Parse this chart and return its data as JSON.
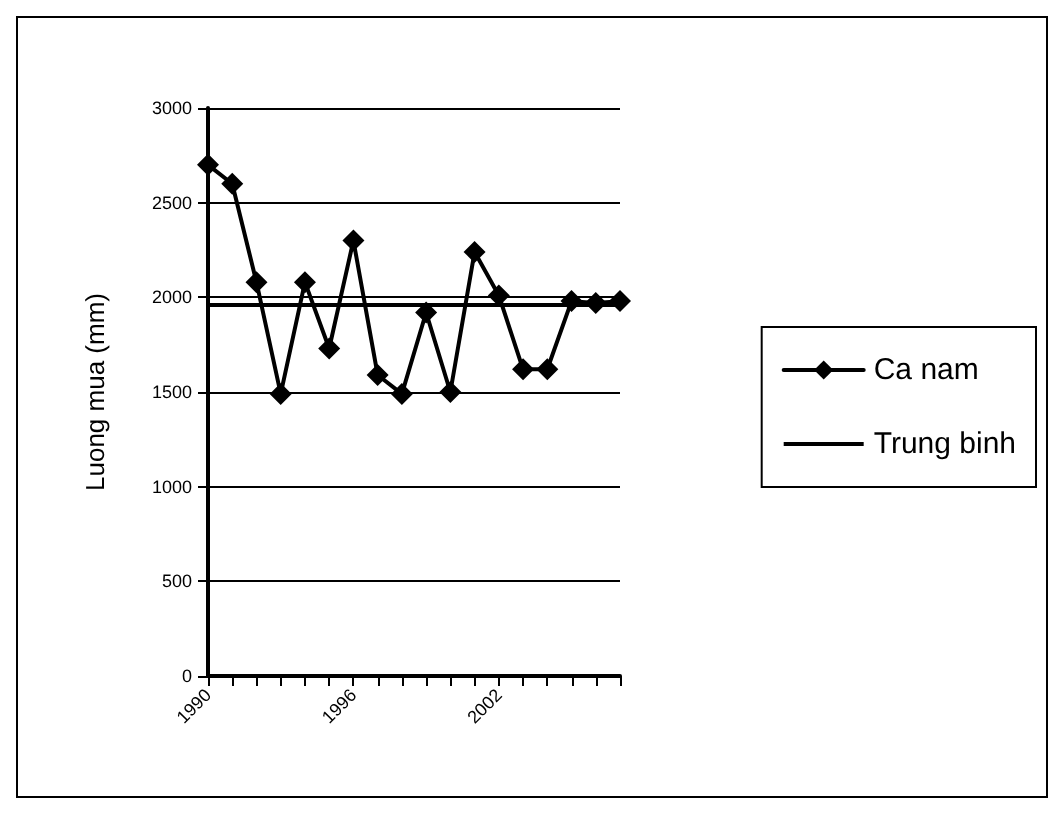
{
  "chart_data": {
    "type": "line",
    "ylabel": "Luong mua (mm)",
    "categories": [
      "1990",
      null,
      null,
      null,
      null,
      null,
      "1996",
      null,
      null,
      null,
      null,
      null,
      "2002",
      null,
      null,
      null,
      null,
      null
    ],
    "series": [
      {
        "name": "Ca nam",
        "color": "#000000",
        "marker": "diamond",
        "values": [
          2700,
          2600,
          2080,
          1490,
          2080,
          1730,
          2300,
          1590,
          1490,
          1920,
          1500,
          2240,
          2010,
          1620,
          1620,
          1980,
          1970,
          1980
        ]
      },
      {
        "name": "Trung binh",
        "color": "#000000",
        "marker": "none",
        "values": [
          1960,
          1960,
          1960,
          1960,
          1960,
          1960,
          1960,
          1960,
          1960,
          1960,
          1960,
          1960,
          1960,
          1960,
          1960,
          1960,
          1960,
          1960
        ]
      }
    ],
    "ylim": [
      0,
      3000
    ],
    "yticks": [
      0,
      500,
      1000,
      1500,
      2000,
      2500,
      3000
    ],
    "grid": "y",
    "legend": "right",
    "line_style": "solid"
  }
}
